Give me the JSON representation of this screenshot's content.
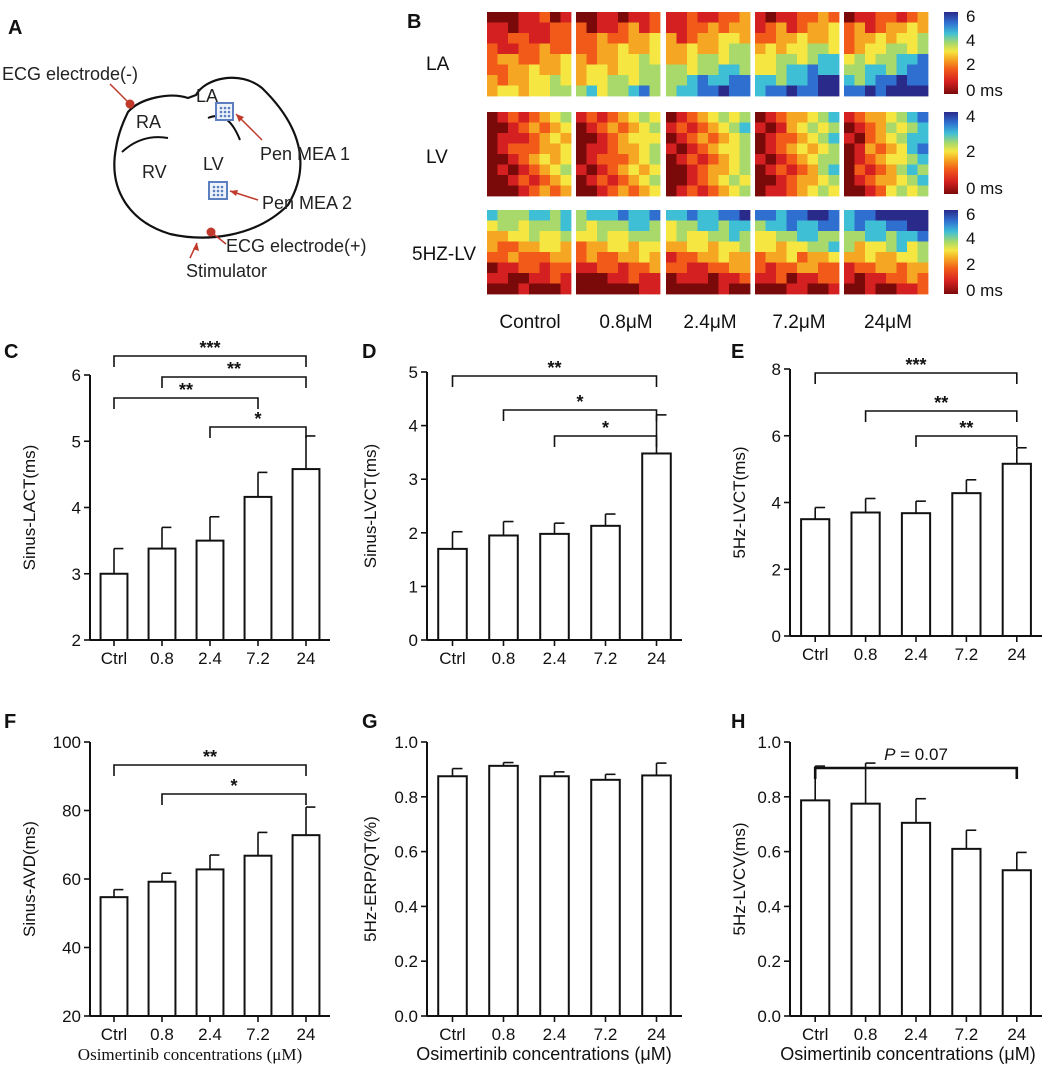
{
  "panel_labels": {
    "A": "A",
    "B": "B",
    "C": "C",
    "D": "D",
    "E": "E",
    "F": "F",
    "G": "G",
    "H": "H"
  },
  "diagram": {
    "chambers": [
      "RA",
      "RV",
      "LA",
      "LV"
    ],
    "annotations": {
      "ecg_neg": "ECG electrode(-)",
      "pen_mea1": "Pen MEA 1",
      "pen_mea2": "Pen MEA 2",
      "ecg_pos": "ECG electrode(+)",
      "stimulator": "Stimulator"
    },
    "colors": {
      "marker": "#c0392b",
      "mea": "#5b7fbf",
      "outline": "#111111"
    }
  },
  "heatmaps": {
    "rows": [
      "LA",
      "LV",
      "5HZ-LV"
    ],
    "columns": [
      "Control",
      "0.8μM",
      "2.4μM",
      "7.2μM",
      "24μM"
    ],
    "colorbars": [
      {
        "max": "6",
        "mid": "4",
        "low": "2",
        "zero": "0 ms",
        "ticks": [
          "6",
          "4",
          "2"
        ]
      },
      {
        "max": "4",
        "low": "2",
        "zero": "0 ms",
        "ticks": [
          "4",
          "2"
        ]
      },
      {
        "max": "6",
        "mid": "4",
        "low": "2",
        "zero": "0 ms",
        "ticks": [
          "6",
          "4",
          "2"
        ]
      }
    ],
    "intensity_scale": [
      [
        0.2,
        0.45,
        0.7,
        0.8,
        0.88
      ],
      [
        0.1,
        0.2,
        0.25,
        0.3,
        0.45
      ],
      [
        0.45,
        0.55,
        0.6,
        0.7,
        0.85
      ]
    ],
    "colormap": [
      "#7a0a0a",
      "#d42020",
      "#f25a1a",
      "#f5a623",
      "#f5e642",
      "#a8d96a",
      "#3fbfd6",
      "#2f6fd0",
      "#2a2a8a"
    ]
  },
  "x_title": "Osimertinib concentrations (μM)",
  "chart_data": [
    {
      "type": "bar",
      "panel": "C",
      "categories": [
        "Ctrl",
        "0.8",
        "2.4",
        "7.2",
        "24"
      ],
      "values": [
        3.0,
        3.38,
        3.5,
        4.16,
        4.58
      ],
      "errors": [
        0.38,
        0.32,
        0.36,
        0.37,
        0.5
      ],
      "ylabel": "Sinus-LACT(ms)",
      "ylim": [
        2,
        6
      ],
      "yticks": [
        "2",
        "3",
        "4",
        "5",
        "6"
      ],
      "significance": [
        {
          "from": 0,
          "to": 4,
          "label": "***"
        },
        {
          "from": 1,
          "to": 4,
          "label": "**"
        },
        {
          "from": 0,
          "to": 3,
          "label": "**"
        },
        {
          "from": 2,
          "to": 4,
          "label": "*"
        }
      ]
    },
    {
      "type": "bar",
      "panel": "D",
      "categories": [
        "Ctrl",
        "0.8",
        "2.4",
        "7.2",
        "24"
      ],
      "values": [
        1.7,
        1.95,
        1.98,
        2.13,
        3.48
      ],
      "errors": [
        0.32,
        0.26,
        0.2,
        0.22,
        0.72
      ],
      "ylabel": "Sinus-LVCT(ms)",
      "ylim": [
        0,
        5
      ],
      "yticks": [
        "0",
        "1",
        "2",
        "3",
        "4",
        "5"
      ],
      "significance": [
        {
          "from": 0,
          "to": 4,
          "label": "**"
        },
        {
          "from": 1,
          "to": 4,
          "label": "*"
        },
        {
          "from": 2,
          "to": 4,
          "label": "*"
        }
      ]
    },
    {
      "type": "bar",
      "panel": "E",
      "categories": [
        "Ctrl",
        "0.8",
        "2.4",
        "7.2",
        "24"
      ],
      "values": [
        3.5,
        3.7,
        3.68,
        4.28,
        5.16
      ],
      "errors": [
        0.35,
        0.42,
        0.36,
        0.4,
        0.48
      ],
      "ylabel": "5Hz-LVCT(ms)",
      "ylim": [
        0,
        8
      ],
      "yticks": [
        "0",
        "2",
        "4",
        "6",
        "8"
      ],
      "significance": [
        {
          "from": 0,
          "to": 4,
          "label": "***"
        },
        {
          "from": 1,
          "to": 4,
          "label": "**"
        },
        {
          "from": 2,
          "to": 4,
          "label": "**"
        }
      ]
    },
    {
      "type": "bar",
      "panel": "F",
      "categories": [
        "Ctrl",
        "0.8",
        "2.4",
        "7.2",
        "24"
      ],
      "values": [
        54.7,
        59.2,
        62.8,
        66.8,
        72.8
      ],
      "errors": [
        2.2,
        2.5,
        4.2,
        6.8,
        8.2
      ],
      "ylabel": "Sinus-AVD(ms)",
      "ylim": [
        20,
        100
      ],
      "yticks": [
        "20",
        "40",
        "60",
        "80",
        "100"
      ],
      "significance": [
        {
          "from": 0,
          "to": 4,
          "label": "**"
        },
        {
          "from": 1,
          "to": 4,
          "label": "*"
        }
      ]
    },
    {
      "type": "bar",
      "panel": "G",
      "categories": [
        "Ctrl",
        "0.8",
        "2.4",
        "7.2",
        "24"
      ],
      "values": [
        0.875,
        0.913,
        0.875,
        0.862,
        0.878
      ],
      "errors": [
        0.028,
        0.012,
        0.016,
        0.02,
        0.045
      ],
      "ylabel": "5Hz-ERP/QT(%)",
      "ylim": [
        0,
        1.0
      ],
      "yticks": [
        "0.0",
        "0.2",
        "0.4",
        "0.6",
        "0.8",
        "1.0"
      ],
      "significance": []
    },
    {
      "type": "bar",
      "panel": "H",
      "categories": [
        "Ctrl",
        "0.8",
        "2.4",
        "7.2",
        "24"
      ],
      "values": [
        0.787,
        0.775,
        0.705,
        0.61,
        0.532
      ],
      "errors": [
        0.125,
        0.148,
        0.088,
        0.068,
        0.065
      ],
      "ylabel": "5Hz-LVCV(ms)",
      "ylim": [
        0,
        1.0
      ],
      "yticks": [
        "0.0",
        "0.2",
        "0.4",
        "0.6",
        "0.8",
        "1.0"
      ],
      "significance": [
        {
          "from": 0,
          "to": 4,
          "label": "P = 0.07",
          "p_letter": "P",
          "p_rest": " = 0.07"
        }
      ]
    }
  ]
}
